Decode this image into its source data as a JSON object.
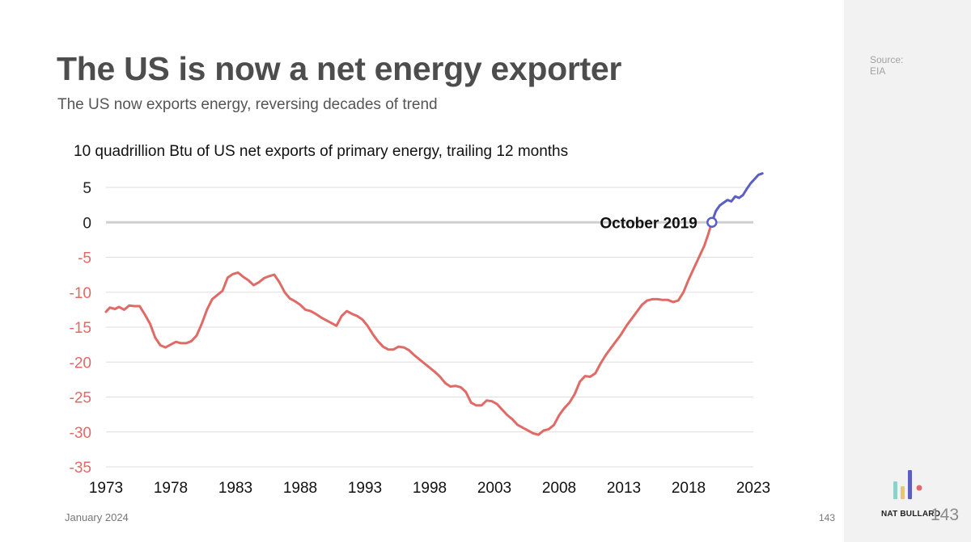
{
  "header": {
    "title": "The US is now a net energy exporter",
    "subtitle": "The US now exports energy, reversing decades of trend"
  },
  "sidebar": {
    "source_label": "Source:",
    "source_value": "EIA"
  },
  "footer": {
    "date": "January 2024",
    "page_number": "143",
    "brand": "NAT BULLARD",
    "page_number_large": "143"
  },
  "chart_data": {
    "type": "line",
    "subtitle": "10 quadrillion Btu of US net exports of primary energy, trailing 12 months",
    "xlim": [
      1973,
      2023
    ],
    "ylim": [
      -35,
      5
    ],
    "x_ticks": [
      1973,
      1978,
      1983,
      1988,
      1993,
      1998,
      2003,
      2008,
      2013,
      2018,
      2023
    ],
    "y_ticks": [
      5,
      0,
      -5,
      -10,
      -15,
      -20,
      -25,
      -30,
      -35
    ],
    "grid": true,
    "annotation": {
      "label": "October 2019",
      "x": 2019.8,
      "y": 0
    },
    "colors": {
      "negative": "#df6a66",
      "positive": "#5a5fc4",
      "grid": "#dedede",
      "zero_line": "#cfcfcf",
      "positive_tick": "#222222"
    },
    "series": [
      {
        "points": [
          [
            1973.0,
            -12.8
          ],
          [
            1973.3,
            -12.2
          ],
          [
            1973.7,
            -12.4
          ],
          [
            1974.0,
            -12.1
          ],
          [
            1974.4,
            -12.5
          ],
          [
            1974.8,
            -11.9
          ],
          [
            1975.2,
            -12.0
          ],
          [
            1975.6,
            -12.0
          ],
          [
            1976.0,
            -13.2
          ],
          [
            1976.4,
            -14.5
          ],
          [
            1976.8,
            -16.5
          ],
          [
            1977.2,
            -17.6
          ],
          [
            1977.6,
            -17.9
          ],
          [
            1978.0,
            -17.5
          ],
          [
            1978.4,
            -17.1
          ],
          [
            1978.8,
            -17.3
          ],
          [
            1979.2,
            -17.3
          ],
          [
            1979.6,
            -17.0
          ],
          [
            1980.0,
            -16.2
          ],
          [
            1980.4,
            -14.5
          ],
          [
            1980.8,
            -12.5
          ],
          [
            1981.2,
            -11.0
          ],
          [
            1981.6,
            -10.4
          ],
          [
            1982.0,
            -9.8
          ],
          [
            1982.4,
            -7.9
          ],
          [
            1982.8,
            -7.4
          ],
          [
            1983.2,
            -7.2
          ],
          [
            1983.6,
            -7.8
          ],
          [
            1984.0,
            -8.3
          ],
          [
            1984.4,
            -9.0
          ],
          [
            1984.8,
            -8.6
          ],
          [
            1985.2,
            -8.0
          ],
          [
            1985.6,
            -7.7
          ],
          [
            1986.0,
            -7.5
          ],
          [
            1986.4,
            -8.6
          ],
          [
            1986.8,
            -10.0
          ],
          [
            1987.2,
            -10.9
          ],
          [
            1987.6,
            -11.3
          ],
          [
            1988.0,
            -11.8
          ],
          [
            1988.4,
            -12.5
          ],
          [
            1988.8,
            -12.7
          ],
          [
            1989.2,
            -13.1
          ],
          [
            1989.6,
            -13.6
          ],
          [
            1990.0,
            -14.0
          ],
          [
            1990.4,
            -14.4
          ],
          [
            1990.8,
            -14.8
          ],
          [
            1991.2,
            -13.4
          ],
          [
            1991.6,
            -12.7
          ],
          [
            1992.0,
            -13.1
          ],
          [
            1992.4,
            -13.4
          ],
          [
            1992.8,
            -13.9
          ],
          [
            1993.2,
            -14.8
          ],
          [
            1993.6,
            -16.0
          ],
          [
            1994.0,
            -17.0
          ],
          [
            1994.4,
            -17.8
          ],
          [
            1994.8,
            -18.2
          ],
          [
            1995.2,
            -18.2
          ],
          [
            1995.6,
            -17.8
          ],
          [
            1996.0,
            -17.9
          ],
          [
            1996.4,
            -18.3
          ],
          [
            1996.8,
            -19.0
          ],
          [
            1997.2,
            -19.6
          ],
          [
            1997.6,
            -20.2
          ],
          [
            1998.0,
            -20.8
          ],
          [
            1998.4,
            -21.4
          ],
          [
            1998.8,
            -22.1
          ],
          [
            1999.2,
            -23.0
          ],
          [
            1999.6,
            -23.5
          ],
          [
            2000.0,
            -23.4
          ],
          [
            2000.4,
            -23.6
          ],
          [
            2000.8,
            -24.3
          ],
          [
            2001.2,
            -25.8
          ],
          [
            2001.6,
            -26.2
          ],
          [
            2002.0,
            -26.2
          ],
          [
            2002.4,
            -25.5
          ],
          [
            2002.8,
            -25.6
          ],
          [
            2003.2,
            -26.0
          ],
          [
            2003.6,
            -26.8
          ],
          [
            2004.0,
            -27.6
          ],
          [
            2004.4,
            -28.2
          ],
          [
            2004.8,
            -29.0
          ],
          [
            2005.2,
            -29.4
          ],
          [
            2005.6,
            -29.8
          ],
          [
            2006.0,
            -30.2
          ],
          [
            2006.4,
            -30.4
          ],
          [
            2006.8,
            -29.8
          ],
          [
            2007.2,
            -29.6
          ],
          [
            2007.6,
            -29.0
          ],
          [
            2008.0,
            -27.6
          ],
          [
            2008.4,
            -26.6
          ],
          [
            2008.8,
            -25.8
          ],
          [
            2009.2,
            -24.6
          ],
          [
            2009.6,
            -22.8
          ],
          [
            2010.0,
            -22.0
          ],
          [
            2010.4,
            -22.1
          ],
          [
            2010.8,
            -21.6
          ],
          [
            2011.2,
            -20.2
          ],
          [
            2011.6,
            -19.0
          ],
          [
            2012.0,
            -18.0
          ],
          [
            2012.4,
            -17.0
          ],
          [
            2012.8,
            -16.0
          ],
          [
            2013.2,
            -14.8
          ],
          [
            2013.6,
            -13.8
          ],
          [
            2014.0,
            -12.8
          ],
          [
            2014.4,
            -11.8
          ],
          [
            2014.8,
            -11.2
          ],
          [
            2015.2,
            -11.0
          ],
          [
            2015.6,
            -11.0
          ],
          [
            2016.0,
            -11.1
          ],
          [
            2016.4,
            -11.1
          ],
          [
            2016.8,
            -11.4
          ],
          [
            2017.2,
            -11.2
          ],
          [
            2017.6,
            -10.0
          ],
          [
            2018.0,
            -8.2
          ],
          [
            2018.4,
            -6.6
          ],
          [
            2018.8,
            -5.0
          ],
          [
            2019.2,
            -3.4
          ],
          [
            2019.5,
            -1.8
          ],
          [
            2019.8,
            0.0
          ],
          [
            2020.1,
            1.6
          ],
          [
            2020.4,
            2.4
          ],
          [
            2020.7,
            2.8
          ],
          [
            2021.0,
            3.2
          ],
          [
            2021.3,
            3.0
          ],
          [
            2021.6,
            3.7
          ],
          [
            2021.9,
            3.5
          ],
          [
            2022.2,
            3.9
          ],
          [
            2022.5,
            4.8
          ],
          [
            2022.8,
            5.6
          ],
          [
            2023.1,
            6.2
          ],
          [
            2023.4,
            6.8
          ],
          [
            2023.7,
            7.0
          ]
        ]
      }
    ]
  }
}
